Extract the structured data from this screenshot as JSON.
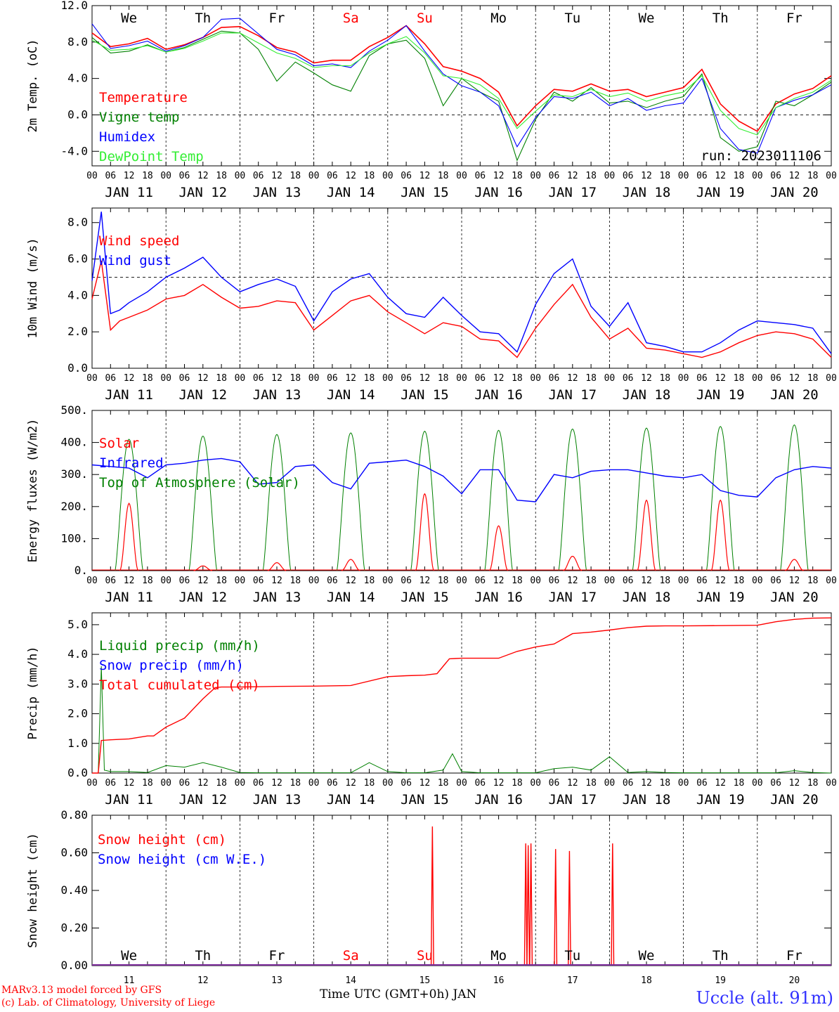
{
  "chart_data": [
    {
      "type": "line",
      "ylabel": "2m Temp. (oC)",
      "ylim": [
        -5.6,
        12.0
      ],
      "yticks": [
        "12.0",
        "8.0",
        "4.0",
        "0.0",
        "-4.0"
      ],
      "ytick_values": [
        12,
        8,
        4,
        0,
        -4
      ],
      "ref_line": 0,
      "annotation": "run: 2023011106",
      "day_names": [
        "We",
        "Th",
        "Fr",
        "Sa",
        "Su",
        "Mo",
        "Tu",
        "We",
        "Th",
        "Fr"
      ],
      "series": [
        {
          "name": "Temperature",
          "color": "#ff0000",
          "x": [
            0,
            6,
            12,
            18,
            24,
            30,
            36,
            42,
            48,
            54,
            60,
            66,
            72,
            78,
            84,
            90,
            96,
            102,
            108,
            114,
            120,
            126,
            132,
            138,
            144,
            150,
            156,
            162,
            168,
            174,
            180,
            186,
            192,
            198,
            204,
            210,
            216,
            222,
            228,
            234,
            240
          ],
          "y": [
            9,
            7.5,
            7.8,
            8.4,
            7.2,
            7.7,
            8.5,
            9.6,
            9.7,
            8.7,
            7.4,
            6.9,
            5.7,
            6.0,
            6.0,
            7.5,
            8.5,
            9.8,
            7.8,
            5.3,
            4.8,
            4.0,
            2.5,
            -1.2,
            1.0,
            2.8,
            2.6,
            3.4,
            2.6,
            2.8,
            2.0,
            2.5,
            3.0,
            5.0,
            1.2,
            -0.7,
            -1.8,
            1.2,
            2.3,
            2.9,
            4.3
          ]
        },
        {
          "name": "Vigne temp",
          "color": "#008000",
          "x": [
            0,
            6,
            12,
            18,
            24,
            30,
            36,
            42,
            48,
            54,
            60,
            66,
            72,
            78,
            84,
            90,
            96,
            102,
            108,
            114,
            120,
            126,
            132,
            138,
            144,
            150,
            156,
            162,
            168,
            174,
            180,
            186,
            192,
            198,
            204,
            210,
            216,
            222,
            228,
            234,
            240
          ],
          "y": [
            8.5,
            6.8,
            7.0,
            7.7,
            6.9,
            7.4,
            8.3,
            9.2,
            9.0,
            7.2,
            3.7,
            5.8,
            4.6,
            3.3,
            2.6,
            6.5,
            7.8,
            8.2,
            6.2,
            1.0,
            4.0,
            2.5,
            1.5,
            -5.0,
            -0.5,
            2.5,
            1.5,
            3.0,
            1.3,
            1.5,
            0.8,
            1.5,
            2.0,
            4.5,
            -2.5,
            -4.0,
            -3.5,
            1.5,
            1.0,
            2.2,
            3.6
          ]
        },
        {
          "name": "Humidex",
          "color": "#0000ff",
          "x": [
            0,
            6,
            12,
            18,
            24,
            30,
            36,
            42,
            48,
            54,
            60,
            66,
            72,
            78,
            84,
            90,
            96,
            102,
            108,
            114,
            120,
            126,
            132,
            138,
            144,
            150,
            156,
            162,
            168,
            174,
            180,
            186,
            192,
            198,
            204,
            210,
            216,
            222,
            228,
            234,
            240
          ],
          "y": [
            10,
            7.3,
            7.6,
            8.1,
            7.0,
            7.6,
            8.5,
            10.5,
            10.6,
            8.9,
            7.2,
            6.6,
            5.4,
            5.6,
            5.2,
            7.0,
            8.2,
            9.8,
            7.0,
            4.5,
            3.2,
            2.5,
            1.0,
            -3.5,
            -0.3,
            2.0,
            1.8,
            2.5,
            1.0,
            1.8,
            0.5,
            1.0,
            1.3,
            4.0,
            -1.5,
            -3.8,
            -4.2,
            0.8,
            1.6,
            2.2,
            3.3
          ]
        },
        {
          "name": "DewPoint Temp",
          "color": "#33ee33",
          "x": [
            0,
            6,
            12,
            18,
            24,
            30,
            36,
            42,
            48,
            54,
            60,
            66,
            72,
            78,
            84,
            90,
            96,
            102,
            108,
            114,
            120,
            126,
            132,
            138,
            144,
            150,
            156,
            162,
            168,
            174,
            180,
            186,
            192,
            198,
            204,
            210,
            216,
            222,
            228,
            234,
            240
          ],
          "y": [
            8.2,
            7.1,
            7.2,
            7.6,
            6.9,
            7.3,
            8.1,
            9.0,
            9.0,
            7.9,
            6.8,
            6.2,
            5.2,
            5.4,
            5.4,
            6.8,
            7.8,
            8.6,
            6.8,
            4.3,
            4.0,
            3.3,
            1.8,
            -1.5,
            0.4,
            2.2,
            2.0,
            2.8,
            2.0,
            2.4,
            1.5,
            2.1,
            2.5,
            4.3,
            0.5,
            -1.5,
            -2.2,
            0.8,
            1.8,
            2.5,
            3.8
          ]
        }
      ]
    },
    {
      "type": "line",
      "ylabel": "10m Wind (m/s)",
      "ylim": [
        0,
        8.8
      ],
      "yticks": [
        "8.0",
        "6.0",
        "4.0",
        "2.0",
        "0.0"
      ],
      "ytick_values": [
        8,
        6,
        4,
        2,
        0
      ],
      "ref_line": 5,
      "series": [
        {
          "name": "Wind speed",
          "color": "#ff0000",
          "x": [
            0,
            3,
            6,
            9,
            12,
            18,
            24,
            30,
            36,
            42,
            48,
            54,
            60,
            66,
            72,
            78,
            84,
            90,
            96,
            102,
            108,
            114,
            120,
            126,
            132,
            138,
            144,
            150,
            156,
            162,
            168,
            174,
            180,
            186,
            192,
            198,
            204,
            210,
            216,
            222,
            228,
            234,
            240
          ],
          "y": [
            3.8,
            5.9,
            2.1,
            2.6,
            2.8,
            3.2,
            3.8,
            4.0,
            4.6,
            3.9,
            3.3,
            3.4,
            3.7,
            3.6,
            2.1,
            2.9,
            3.7,
            4.0,
            3.1,
            2.5,
            1.9,
            2.5,
            2.3,
            1.6,
            1.5,
            0.6,
            2.2,
            3.5,
            4.6,
            2.8,
            1.6,
            2.2,
            1.1,
            1.0,
            0.8,
            0.6,
            0.9,
            1.4,
            1.8,
            2.0,
            1.9,
            1.6,
            0.6
          ]
        },
        {
          "name": "Wind gust",
          "color": "#0000ff",
          "x": [
            0,
            3,
            6,
            9,
            12,
            18,
            24,
            30,
            36,
            42,
            48,
            54,
            60,
            66,
            72,
            78,
            84,
            90,
            96,
            102,
            108,
            114,
            120,
            126,
            132,
            138,
            144,
            150,
            156,
            162,
            168,
            174,
            180,
            186,
            192,
            198,
            204,
            210,
            216,
            222,
            228,
            234,
            240
          ],
          "y": [
            4.8,
            8.6,
            3.0,
            3.2,
            3.6,
            4.2,
            5.0,
            5.5,
            6.1,
            5.0,
            4.2,
            4.6,
            4.9,
            4.5,
            2.6,
            4.2,
            4.9,
            5.2,
            3.9,
            3.0,
            2.8,
            3.9,
            2.9,
            2.0,
            1.9,
            0.9,
            3.5,
            5.2,
            6.0,
            3.4,
            2.3,
            3.6,
            1.4,
            1.2,
            0.9,
            0.9,
            1.4,
            2.1,
            2.6,
            2.5,
            2.4,
            2.2,
            0.8
          ]
        }
      ]
    },
    {
      "type": "line",
      "ylabel": "Energy fluxes (W/m2)",
      "ylim": [
        0,
        500
      ],
      "yticks": [
        "500.",
        "400.",
        "300.",
        "200.",
        "100.",
        "0."
      ],
      "ytick_values": [
        500,
        400,
        300,
        200,
        100,
        0
      ],
      "toa_peaks": [
        410,
        420,
        425,
        430,
        435,
        438,
        442,
        445,
        450,
        455
      ],
      "series": [
        {
          "name": "Solar",
          "color": "#ff0000",
          "peaks": [
            210,
            15,
            25,
            35,
            240,
            140,
            45,
            220,
            220,
            35
          ]
        },
        {
          "name": "Infrared",
          "color": "#0000ff",
          "x": [
            0,
            6,
            12,
            18,
            24,
            30,
            36,
            42,
            48,
            54,
            60,
            66,
            72,
            78,
            84,
            90,
            96,
            102,
            108,
            114,
            120,
            126,
            132,
            138,
            144,
            150,
            156,
            162,
            168,
            174,
            180,
            186,
            192,
            198,
            204,
            210,
            216,
            222,
            228,
            234,
            240
          ],
          "y": [
            330,
            325,
            320,
            290,
            330,
            335,
            345,
            350,
            340,
            270,
            275,
            325,
            330,
            275,
            255,
            335,
            340,
            345,
            325,
            295,
            240,
            315,
            315,
            220,
            215,
            300,
            290,
            310,
            315,
            315,
            305,
            295,
            290,
            300,
            250,
            235,
            230,
            290,
            315,
            325,
            320
          ]
        },
        {
          "name": "Top of Atmosphere (Solar)",
          "color": "#008000"
        }
      ]
    },
    {
      "type": "line",
      "ylabel": "Precip (mm/h)",
      "ylim": [
        0,
        5.4
      ],
      "yticks": [
        "5.0",
        "4.0",
        "3.0",
        "2.0",
        "1.0",
        "0.0"
      ],
      "ytick_values": [
        5,
        4,
        3,
        2,
        1,
        0
      ],
      "series": [
        {
          "name": "Liquid precip (mm/h)",
          "color": "#008000",
          "x": [
            0,
            2,
            3,
            4,
            6,
            12,
            18,
            24,
            30,
            36,
            42,
            48,
            54,
            60,
            72,
            78,
            84,
            90,
            96,
            102,
            108,
            114,
            117,
            120,
            126,
            132,
            138,
            144,
            150,
            156,
            162,
            168,
            174,
            180,
            186,
            192,
            198,
            204,
            210,
            216,
            222,
            228,
            234,
            240
          ],
          "y": [
            0,
            0,
            3.6,
            0.1,
            0.05,
            0.05,
            0.02,
            0.25,
            0.2,
            0.35,
            0.2,
            0.02,
            0.01,
            0.01,
            0.01,
            0.01,
            0.01,
            0.35,
            0.05,
            0.01,
            0.01,
            0.1,
            0.65,
            0.05,
            0.01,
            0.01,
            0.01,
            0.01,
            0.15,
            0.2,
            0.1,
            0.55,
            0.02,
            0.05,
            0.02,
            0.01,
            0.01,
            0.01,
            0.01,
            0.01,
            0.01,
            0.08,
            0.02,
            0
          ]
        },
        {
          "name": "Snow precip (mm/h)",
          "color": "#0000ff"
        },
        {
          "name": "Total cumulated (cm)",
          "color": "#ff0000",
          "x": [
            0,
            2,
            3,
            6,
            12,
            18,
            20,
            24,
            30,
            36,
            40,
            42,
            48,
            60,
            72,
            84,
            96,
            102,
            108,
            112,
            114,
            116,
            118,
            120,
            126,
            132,
            138,
            144,
            150,
            156,
            162,
            168,
            174,
            180,
            186,
            192,
            204,
            216,
            222,
            228,
            234,
            240
          ],
          "y": [
            0,
            0,
            1.1,
            1.12,
            1.15,
            1.25,
            1.25,
            1.55,
            1.85,
            2.5,
            2.88,
            2.9,
            2.9,
            2.92,
            2.93,
            2.95,
            3.25,
            3.28,
            3.3,
            3.35,
            3.6,
            3.85,
            3.86,
            3.87,
            3.87,
            3.87,
            4.1,
            4.25,
            4.35,
            4.7,
            4.75,
            4.82,
            4.9,
            4.95,
            4.96,
            4.96,
            4.97,
            4.98,
            5.1,
            5.18,
            5.22,
            5.23
          ]
        }
      ]
    },
    {
      "type": "line",
      "ylabel": "Snow height (cm)",
      "ylim": [
        0,
        0.8
      ],
      "yticks": [
        "0.80",
        "0.60",
        "0.40",
        "0.20",
        "0.00"
      ],
      "ytick_values": [
        0.8,
        0.6,
        0.4,
        0.2,
        0
      ],
      "day_names": [
        "We",
        "Th",
        "Fr",
        "Sa",
        "Su",
        "Mo",
        "Tu",
        "We",
        "Th",
        "Fr"
      ],
      "day_numbers": [
        "11",
        "12",
        "13",
        "14",
        "15",
        "16",
        "17",
        "18",
        "19",
        "20"
      ],
      "series": [
        {
          "name": "Snow height (cm)",
          "color": "#ff0000",
          "spikes_x": [
            110.5,
            140.8,
            141.6,
            142.5,
            150.5,
            155,
            169
          ],
          "spikes_y": [
            0.74,
            0.65,
            0.64,
            0.65,
            0.62,
            0.61,
            0.65
          ]
        },
        {
          "name": "Snow height (cm W.E.)",
          "color": "#0000ff"
        }
      ]
    }
  ],
  "x_axis": {
    "hour_labels": [
      "00",
      "06",
      "12",
      "18"
    ],
    "date_labels": [
      "JAN 11",
      "JAN 12",
      "JAN 13",
      "JAN 14",
      "JAN 15",
      "JAN 16",
      "JAN 17",
      "JAN 18",
      "JAN 19",
      "JAN 20"
    ],
    "weekend_color": "#ff0000",
    "weekend_days": [
      3,
      4
    ]
  },
  "footer": {
    "model_line": "MARv3.13 model forced by GFS",
    "credit_line": "(c) Lab. of Climatology, University of Liege",
    "x_title": "Time UTC (GMT+0h) JAN",
    "station": "Uccle (alt. 91m)"
  }
}
